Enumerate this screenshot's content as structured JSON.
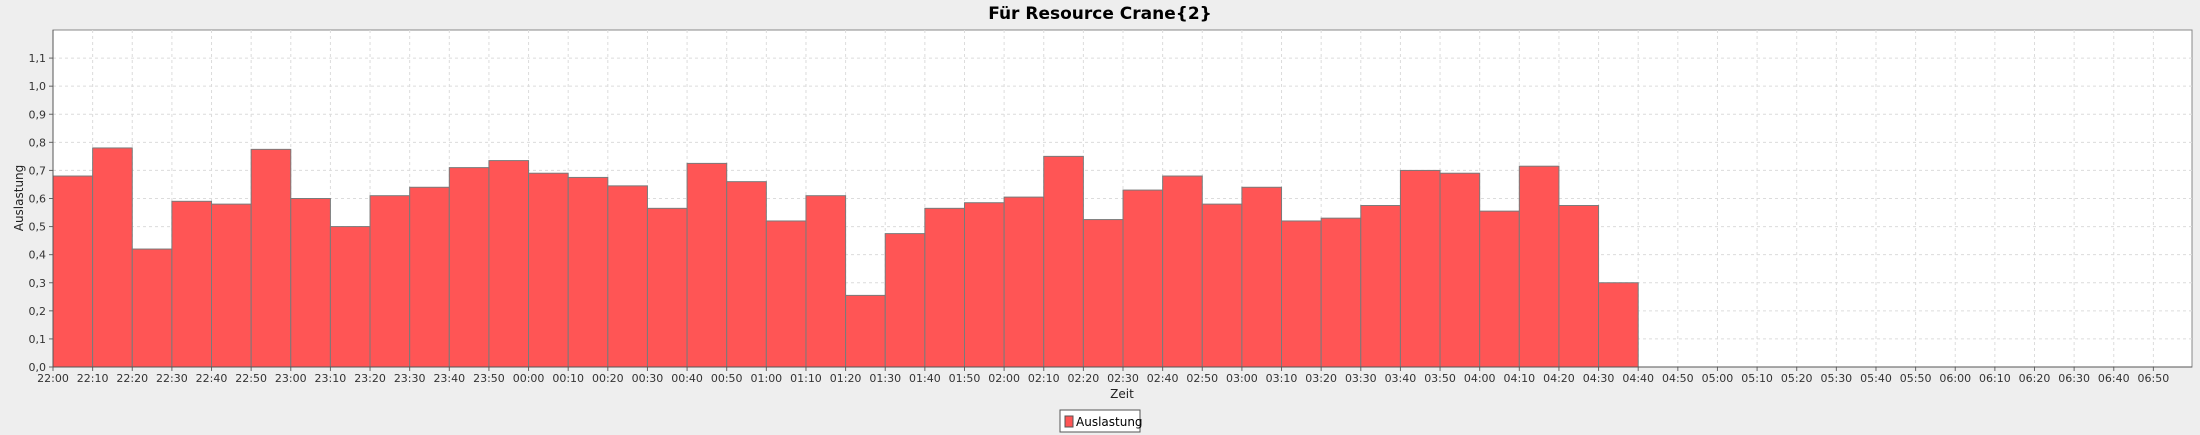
{
  "chart_data": {
    "type": "bar",
    "title": "Für Resource Crane{2}",
    "xlabel": "Zeit",
    "ylabel": "Auslastung",
    "ylim": [
      0,
      1.2
    ],
    "yticks": [
      "0,0",
      "0,1",
      "0,2",
      "0,3",
      "0,4",
      "0,5",
      "0,6",
      "0,7",
      "0,8",
      "0,9",
      "1,0",
      "1,1"
    ],
    "grid": true,
    "legend_position": "bottom-center",
    "colors": {
      "bar": "#ff5555",
      "bar_edge": "#7a7a7a",
      "plot_bg": "#ffffff",
      "page_bg": "#eeeeee",
      "grid": "#dcdcdc"
    },
    "x_ticks": [
      "22:00",
      "22:10",
      "22:20",
      "22:30",
      "22:40",
      "22:50",
      "23:00",
      "23:10",
      "23:20",
      "23:30",
      "23:40",
      "23:50",
      "00:00",
      "00:10",
      "00:20",
      "00:30",
      "00:40",
      "00:50",
      "01:00",
      "01:10",
      "01:20",
      "01:30",
      "01:40",
      "01:50",
      "02:00",
      "02:10",
      "02:20",
      "02:30",
      "02:40",
      "02:50",
      "03:00",
      "03:10",
      "03:20",
      "03:30",
      "03:40",
      "03:50",
      "04:00",
      "04:10",
      "04:20",
      "04:30",
      "04:40",
      "04:50",
      "05:00",
      "05:10",
      "05:20",
      "05:30",
      "05:40",
      "05:50",
      "06:00",
      "06:10",
      "06:20",
      "06:30",
      "06:40",
      "06:50"
    ],
    "series": [
      {
        "name": "Auslastung",
        "values": [
          0.68,
          0.78,
          0.42,
          0.59,
          0.58,
          0.775,
          0.6,
          0.5,
          0.61,
          0.64,
          0.71,
          0.735,
          0.69,
          0.675,
          0.645,
          0.565,
          0.725,
          0.66,
          0.52,
          0.61,
          0.255,
          0.475,
          0.565,
          0.585,
          0.605,
          0.75,
          0.525,
          0.63,
          0.68,
          0.58,
          0.64,
          0.52,
          0.53,
          0.575,
          0.7,
          0.69,
          0.555,
          0.715,
          0.575,
          0.3
        ]
      }
    ]
  }
}
